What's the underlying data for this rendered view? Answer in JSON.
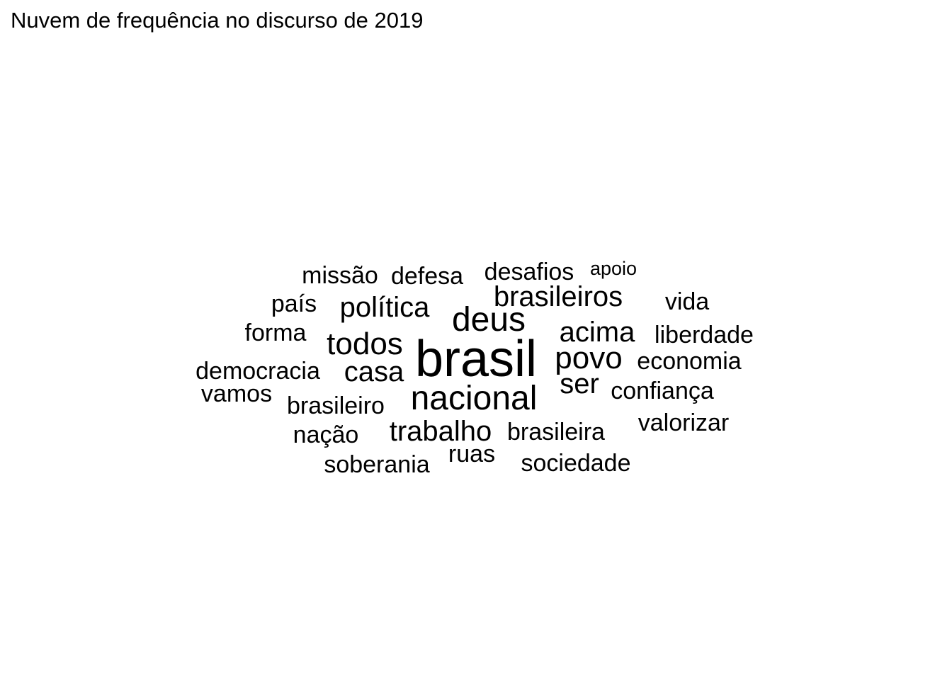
{
  "chart_data": {
    "type": "wordcloud",
    "title": "Nuvem de frequência no discurso de 2019",
    "words": [
      {
        "text": "brasil",
        "weight": 10
      },
      {
        "text": "nacional",
        "weight": 7
      },
      {
        "text": "deus",
        "weight": 7
      },
      {
        "text": "todos",
        "weight": 6
      },
      {
        "text": "povo",
        "weight": 6
      },
      {
        "text": "brasileiros",
        "weight": 5
      },
      {
        "text": "acima",
        "weight": 5
      },
      {
        "text": "trabalho",
        "weight": 5
      },
      {
        "text": "política",
        "weight": 5
      },
      {
        "text": "casa",
        "weight": 5
      },
      {
        "text": "ser",
        "weight": 5
      },
      {
        "text": "desafios",
        "weight": 4
      },
      {
        "text": "defesa",
        "weight": 4
      },
      {
        "text": "missão",
        "weight": 4
      },
      {
        "text": "país",
        "weight": 4
      },
      {
        "text": "forma",
        "weight": 4
      },
      {
        "text": "democracia",
        "weight": 4
      },
      {
        "text": "vamos",
        "weight": 4
      },
      {
        "text": "brasileiro",
        "weight": 4
      },
      {
        "text": "nação",
        "weight": 4
      },
      {
        "text": "soberania",
        "weight": 4
      },
      {
        "text": "ruas",
        "weight": 4
      },
      {
        "text": "sociedade",
        "weight": 4
      },
      {
        "text": "brasileira",
        "weight": 4
      },
      {
        "text": "valorizar",
        "weight": 4
      },
      {
        "text": "confiança",
        "weight": 4
      },
      {
        "text": "economia",
        "weight": 4
      },
      {
        "text": "liberdade",
        "weight": 4
      },
      {
        "text": "vida",
        "weight": 4
      },
      {
        "text": "apoio",
        "weight": 3
      }
    ]
  }
}
